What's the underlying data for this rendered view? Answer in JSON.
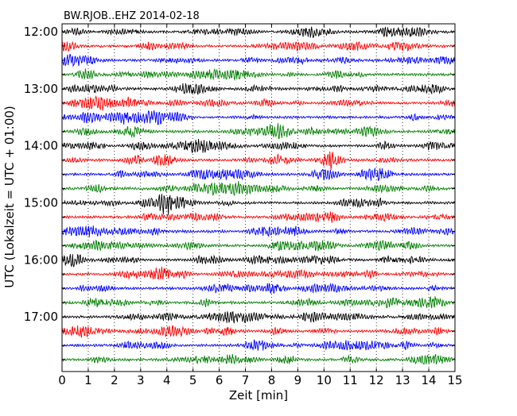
{
  "chart_data": {
    "type": "line",
    "title": "BW.RJOB..EHZ 2014-02-18",
    "xlabel": "Zeit  [min]",
    "ylabel": "UTC (Lokalzeit = UTC + 01:00)",
    "xlim": [
      0,
      15
    ],
    "x_ticks": [
      "0",
      "1",
      "2",
      "3",
      "4",
      "5",
      "6",
      "7",
      "8",
      "9",
      "10",
      "11",
      "12",
      "13",
      "14",
      "15"
    ],
    "y_tick_labels": [
      "12:00",
      "13:00",
      "14:00",
      "15:00",
      "16:00",
      "17:00"
    ],
    "grid": "vertical-dotted",
    "trace_interval_minutes": 15,
    "start_time": "12:00",
    "trace_colors": [
      "#000000",
      "#ff0000",
      "#0000ff",
      "#007f00"
    ],
    "trace_count": 24
  }
}
